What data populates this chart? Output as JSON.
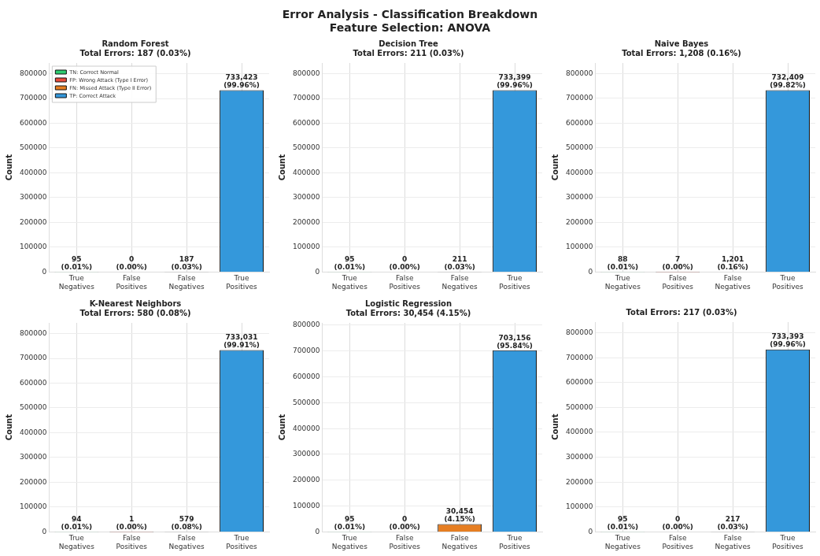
{
  "chart_data": [
    {
      "type": "bar",
      "title": "Random Forest",
      "subtitle": "Total Errors: 187 (0.03%)",
      "ylabel": "Count",
      "annotations": [
        "Error Analysis - Classification Breakdown",
        "Feature Selection: ANOVA"
      ],
      "categories": [
        "True Negatives",
        "False Positives",
        "False Negatives",
        "True Positives"
      ],
      "ylim": [
        0,
        843000
      ],
      "yticks": [
        0,
        100000,
        200000,
        300000,
        400000,
        500000,
        600000,
        700000,
        800000
      ],
      "grid": true,
      "legend": "top left",
      "series": [
        {
          "name": "TN: Correct Normal",
          "color": "#2ecc71",
          "values": [
            95,
            null,
            null,
            null
          ],
          "value_labels": [
            "95\n(0.01%)",
            null,
            null,
            null
          ]
        },
        {
          "name": "FP: Wrong Attack (Type I Error)",
          "color": "#e74c3c",
          "values": [
            null,
            0,
            null,
            null
          ],
          "value_labels": [
            null,
            "0\n(0.00%)",
            null,
            null
          ]
        },
        {
          "name": "FN: Missed Attack (Type II Error)",
          "color": "#e67e22",
          "values": [
            null,
            null,
            187,
            null
          ],
          "value_labels": [
            null,
            null,
            "187\n(0.03%)",
            null
          ]
        },
        {
          "name": "TP: Correct Attack",
          "color": "#3498db",
          "values": [
            null,
            null,
            null,
            733423
          ],
          "value_labels": [
            null,
            null,
            null,
            "733,423\n(99.96%)"
          ]
        }
      ]
    },
    {
      "type": "bar",
      "title": "Decision Tree",
      "subtitle": "Total Errors: 211 (0.03%)",
      "ylabel": "Count",
      "categories": [
        "True Negatives",
        "False Positives",
        "False Negatives",
        "True Positives"
      ],
      "ylim": [
        0,
        843000
      ],
      "yticks": [
        0,
        100000,
        200000,
        300000,
        400000,
        500000,
        600000,
        700000,
        800000
      ],
      "grid": true,
      "values": [
        95,
        0,
        211,
        733399
      ],
      "colors": [
        "#2ecc71",
        "#e74c3c",
        "#e67e22",
        "#3498db"
      ],
      "value_labels": [
        "95\n(0.01%)",
        "0\n(0.00%)",
        "211\n(0.03%)",
        "733,399\n(99.96%)"
      ]
    },
    {
      "type": "bar",
      "title": "Naive Bayes",
      "subtitle": "Total Errors: 1,208 (0.16%)",
      "ylabel": "Count",
      "categories": [
        "True Negatives",
        "False Positives",
        "False Negatives",
        "True Positives"
      ],
      "ylim": [
        0,
        842000
      ],
      "yticks": [
        0,
        100000,
        200000,
        300000,
        400000,
        500000,
        600000,
        700000,
        800000
      ],
      "grid": true,
      "values": [
        88,
        7,
        1201,
        732409
      ],
      "colors": [
        "#2ecc71",
        "#e74c3c",
        "#e67e22",
        "#3498db"
      ],
      "value_labels": [
        "88\n(0.01%)",
        "7\n(0.00%)",
        "1,201\n(0.16%)",
        "732,409\n(99.82%)"
      ]
    },
    {
      "type": "bar",
      "title": "K-Nearest Neighbors",
      "subtitle": "Total Errors: 580 (0.08%)",
      "ylabel": "Count",
      "categories": [
        "True Negatives",
        "False Positives",
        "False Negatives",
        "True Positives"
      ],
      "ylim": [
        0,
        843000
      ],
      "yticks": [
        0,
        100000,
        200000,
        300000,
        400000,
        500000,
        600000,
        700000,
        800000
      ],
      "grid": true,
      "values": [
        94,
        1,
        579,
        733031
      ],
      "colors": [
        "#2ecc71",
        "#e74c3c",
        "#e67e22",
        "#3498db"
      ],
      "value_labels": [
        "94\n(0.01%)",
        "1\n(0.00%)",
        "579\n(0.08%)",
        "733,031\n(99.91%)"
      ]
    },
    {
      "type": "bar",
      "title": "Logistic Regression",
      "subtitle": "Total Errors: 30,454 (4.15%)",
      "ylabel": "Count",
      "categories": [
        "True Negatives",
        "False Positives",
        "False Negatives",
        "True Positives"
      ],
      "ylim": [
        0,
        809000
      ],
      "yticks": [
        0,
        100000,
        200000,
        300000,
        400000,
        500000,
        600000,
        700000,
        800000
      ],
      "grid": true,
      "values": [
        95,
        0,
        30454,
        703156
      ],
      "colors": [
        "#2ecc71",
        "#e74c3c",
        "#e67e22",
        "#3498db"
      ],
      "value_labels": [
        "95\n(0.01%)",
        "0\n(0.00%)",
        "30,454\n(4.15%)",
        "703,156\n(95.84%)"
      ]
    },
    {
      "type": "bar",
      "subtitle": "Total Errors: 217 (0.03%)",
      "ylabel": "Count",
      "categories": [
        "True Negatives",
        "False Positives",
        "False Negatives",
        "True Positives"
      ],
      "ylim": [
        0,
        843000
      ],
      "yticks": [
        0,
        100000,
        200000,
        300000,
        400000,
        500000,
        600000,
        700000,
        800000
      ],
      "grid": true,
      "values": [
        95,
        0,
        217,
        733393
      ],
      "colors": [
        "#2ecc71",
        "#e74c3c",
        "#e67e22",
        "#3498db"
      ],
      "value_labels": [
        "95\n(0.01%)",
        "0\n(0.00%)",
        "217\n(0.03%)",
        "733,393\n(99.96%)"
      ]
    }
  ]
}
